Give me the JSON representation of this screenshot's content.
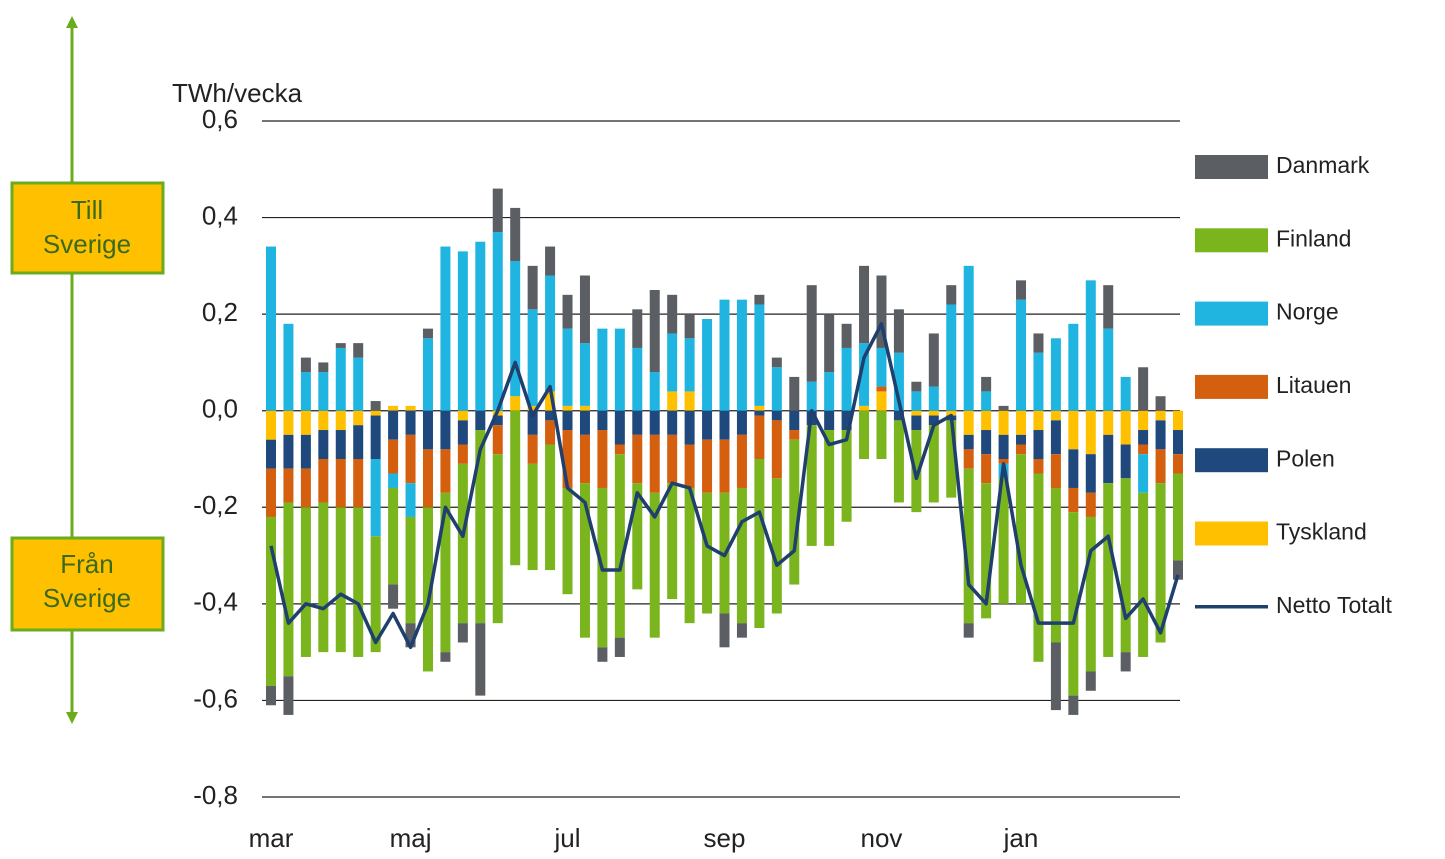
{
  "chart_data": {
    "type": "stacked_bar",
    "y_label": "TWh/vecka",
    "annotations": [
      {
        "lines": [
          "Till",
          "Sverige"
        ]
      },
      {
        "lines": [
          "Från",
          "Sverige"
        ]
      }
    ],
    "categories": [
      "mar",
      null,
      null,
      null,
      null,
      null,
      null,
      null,
      "maj",
      null,
      null,
      null,
      null,
      null,
      null,
      null,
      null,
      "jul",
      null,
      null,
      null,
      null,
      null,
      null,
      null,
      null,
      "sep",
      null,
      null,
      null,
      null,
      null,
      null,
      null,
      null,
      "nov",
      null,
      null,
      null,
      null,
      null,
      null,
      null,
      "jan",
      null,
      null,
      null,
      null,
      null,
      null,
      null,
      null,
      null
    ],
    "ylim": [
      -0.8,
      0.6
    ],
    "yticks": [
      {
        "value": -0.8,
        "label": "-0,8"
      },
      {
        "value": -0.6,
        "label": "-0,6"
      },
      {
        "value": -0.4,
        "label": "-0,4"
      },
      {
        "value": -0.2,
        "label": "-0,2"
      },
      {
        "value": 0.0,
        "label": "0,0"
      },
      {
        "value": 0.2,
        "label": "0,2"
      },
      {
        "value": 0.4,
        "label": "0,4"
      },
      {
        "value": 0.6,
        "label": "0,6"
      }
    ],
    "grid": true,
    "legend": "right",
    "series": [
      {
        "name": "Danmark",
        "color": "#5b5f63",
        "values": [
          -0.04,
          -0.08,
          0.03,
          0.02,
          0.01,
          0.03,
          0.02,
          -0.05,
          -0.05,
          0.02,
          -0.02,
          -0.04,
          -0.15,
          0.09,
          0.11,
          0.09,
          0.06,
          0.07,
          0.14,
          -0.03,
          -0.04,
          0.08,
          0.17,
          0.08,
          0.05,
          0,
          -0.07,
          -0.03,
          0.02,
          0.02,
          0.07,
          0.2,
          0.12,
          0.05,
          0.16,
          0.15,
          0.09,
          0.02,
          0.11,
          0.04,
          -0.03,
          0.03,
          0.01,
          0.04,
          0.04,
          -0.14,
          -0.04,
          -0.04,
          0.09,
          -0.04,
          0.09,
          0.03,
          -0.04
        ]
      },
      {
        "name": "Finland",
        "color": "#7ab51d",
        "values": [
          -0.35,
          -0.36,
          -0.31,
          -0.31,
          -0.3,
          -0.31,
          -0.24,
          -0.2,
          -0.22,
          -0.34,
          -0.33,
          -0.33,
          -0.4,
          -0.35,
          -0.32,
          -0.22,
          -0.26,
          -0.22,
          -0.32,
          -0.33,
          -0.38,
          -0.22,
          -0.3,
          -0.24,
          -0.28,
          -0.25,
          -0.25,
          -0.28,
          -0.35,
          -0.28,
          -0.3,
          -0.25,
          -0.24,
          -0.19,
          -0.1,
          -0.1,
          -0.17,
          -0.17,
          -0.16,
          -0.16,
          -0.32,
          -0.28,
          -0.26,
          -0.31,
          -0.39,
          -0.32,
          -0.38,
          -0.32,
          -0.36,
          -0.36,
          -0.34,
          -0.33,
          -0.18
        ]
      },
      {
        "name": "Norge",
        "color": "#1fb5e0",
        "values": [
          0.34,
          0.18,
          0.08,
          0.08,
          0.13,
          0.11,
          -0.16,
          -0.03,
          -0.07,
          0.15,
          0.34,
          0.33,
          0.35,
          0.37,
          0.28,
          0.2,
          0.24,
          0.16,
          0.13,
          0.17,
          0.17,
          0.13,
          0.08,
          0.12,
          0.11,
          0.19,
          0.23,
          0.23,
          0.21,
          0.09,
          0,
          0.06,
          0.08,
          0.13,
          0.13,
          0.08,
          0.12,
          0.04,
          0.05,
          0.22,
          0.3,
          0.04,
          -0.03,
          0.23,
          0.12,
          0.15,
          0.18,
          0.27,
          0.17,
          0.07,
          -0.08,
          0,
          0
        ]
      },
      {
        "name": "Litauen",
        "color": "#d45f0e",
        "values": [
          -0.1,
          -0.07,
          -0.08,
          -0.09,
          -0.1,
          -0.1,
          0,
          -0.07,
          -0.1,
          -0.12,
          -0.09,
          -0.04,
          0,
          -0.06,
          0,
          -0.06,
          -0.05,
          -0.12,
          -0.1,
          -0.12,
          -0.02,
          -0.1,
          -0.12,
          -0.1,
          -0.09,
          -0.11,
          -0.11,
          -0.11,
          -0.09,
          -0.12,
          -0.02,
          0,
          0,
          0,
          0,
          0.01,
          0,
          0,
          0,
          0,
          -0.04,
          -0.06,
          -0.01,
          -0.02,
          -0.03,
          -0.07,
          -0.05,
          -0.05,
          0,
          0,
          -0.02,
          -0.07,
          -0.04
        ]
      },
      {
        "name": "Polen",
        "color": "#1f497d",
        "values": [
          -0.06,
          -0.07,
          -0.07,
          -0.06,
          -0.06,
          -0.07,
          -0.09,
          -0.06,
          -0.05,
          -0.08,
          -0.08,
          -0.05,
          -0.04,
          -0.02,
          0,
          -0.05,
          -0.02,
          -0.04,
          -0.05,
          -0.04,
          -0.07,
          -0.05,
          -0.05,
          -0.05,
          -0.07,
          -0.06,
          -0.06,
          -0.05,
          -0.01,
          -0.02,
          -0.04,
          -0.03,
          -0.04,
          -0.04,
          0,
          0,
          -0.02,
          -0.03,
          -0.02,
          -0.01,
          -0.03,
          -0.05,
          -0.05,
          -0.02,
          -0.06,
          -0.07,
          -0.08,
          -0.08,
          -0.1,
          -0.07,
          -0.03,
          -0.06,
          -0.05
        ]
      },
      {
        "name": "Tyskland",
        "color": "#ffc000",
        "values": [
          -0.06,
          -0.05,
          -0.05,
          -0.04,
          -0.04,
          -0.03,
          -0.01,
          0.01,
          0.01,
          0,
          0,
          -0.02,
          0,
          -0.01,
          0.03,
          0.01,
          0.04,
          0.01,
          0.01,
          0,
          0,
          0,
          0,
          0.04,
          0.04,
          0,
          0,
          0,
          0.01,
          0,
          0,
          0,
          0,
          0,
          0.01,
          0.04,
          0,
          -0.01,
          -0.01,
          -0.01,
          -0.05,
          -0.04,
          -0.05,
          -0.05,
          -0.04,
          -0.02,
          -0.08,
          -0.09,
          -0.05,
          -0.07,
          -0.04,
          -0.02,
          -0.04
        ]
      }
    ],
    "line_series": {
      "name": "Netto Totalt",
      "color": "#1f3f6e",
      "values": [
        -0.28,
        -0.44,
        -0.4,
        -0.41,
        -0.38,
        -0.4,
        -0.48,
        -0.42,
        -0.49,
        -0.4,
        -0.2,
        -0.26,
        -0.08,
        0,
        0.1,
        -0.01,
        0.05,
        -0.16,
        -0.19,
        -0.33,
        -0.33,
        -0.17,
        -0.22,
        -0.15,
        -0.16,
        -0.28,
        -0.3,
        -0.23,
        -0.21,
        -0.32,
        -0.29,
        0,
        -0.07,
        -0.06,
        0.11,
        0.18,
        0.02,
        -0.14,
        -0.03,
        -0.01,
        -0.36,
        -0.4,
        -0.11,
        -0.32,
        -0.44,
        -0.44,
        -0.44,
        -0.29,
        -0.26,
        -0.43,
        -0.39,
        -0.46,
        -0.34
      ]
    }
  }
}
